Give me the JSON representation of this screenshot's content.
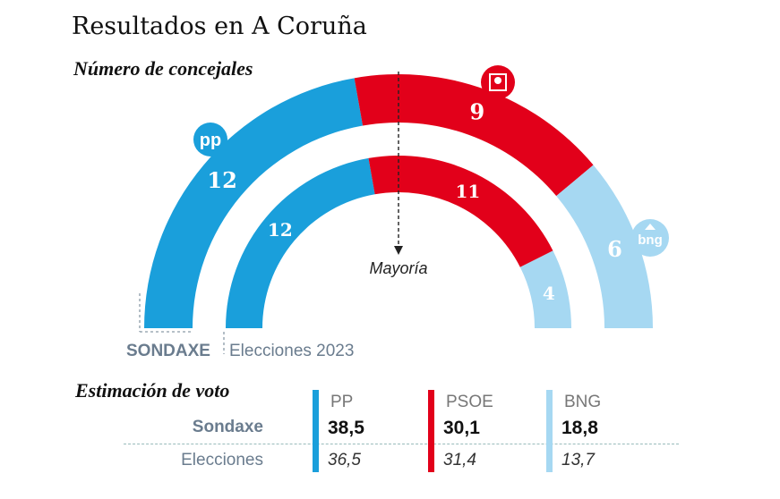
{
  "title": "Resultados en A Coruña",
  "subtitle": "Número de concejales",
  "colors": {
    "PP": "#1a9fdb",
    "PSOE": "#e2001a",
    "BNG": "#a6d8f2"
  },
  "icons": {
    "PP": "pp-logo-icon",
    "PSOE": "psoe-logo-icon",
    "BNG": "bng-logo-icon"
  },
  "chart_data": {
    "type": "semicircle-parliament",
    "total_seats": 27,
    "majority_label": "Mayoría",
    "series": [
      {
        "name": "SONDAXE",
        "seats": [
          {
            "party": "PP",
            "value": 12
          },
          {
            "party": "PSOE",
            "value": 9
          },
          {
            "party": "BNG",
            "value": 6
          }
        ]
      },
      {
        "name": "Elecciones 2023",
        "seats": [
          {
            "party": "PP",
            "value": 12
          },
          {
            "party": "PSOE",
            "value": 11
          },
          {
            "party": "BNG",
            "value": 4
          }
        ]
      }
    ]
  },
  "vote_estimate": {
    "title": "Estimación de voto",
    "row_labels": [
      "Sondaxe",
      "Elecciones"
    ],
    "columns": [
      {
        "party": "PP",
        "sondaxe": "38,5",
        "elecciones": "36,5"
      },
      {
        "party": "PSOE",
        "sondaxe": "30,1",
        "elecciones": "31,4"
      },
      {
        "party": "BNG",
        "sondaxe": "18,8",
        "elecciones": "13,7"
      }
    ]
  }
}
